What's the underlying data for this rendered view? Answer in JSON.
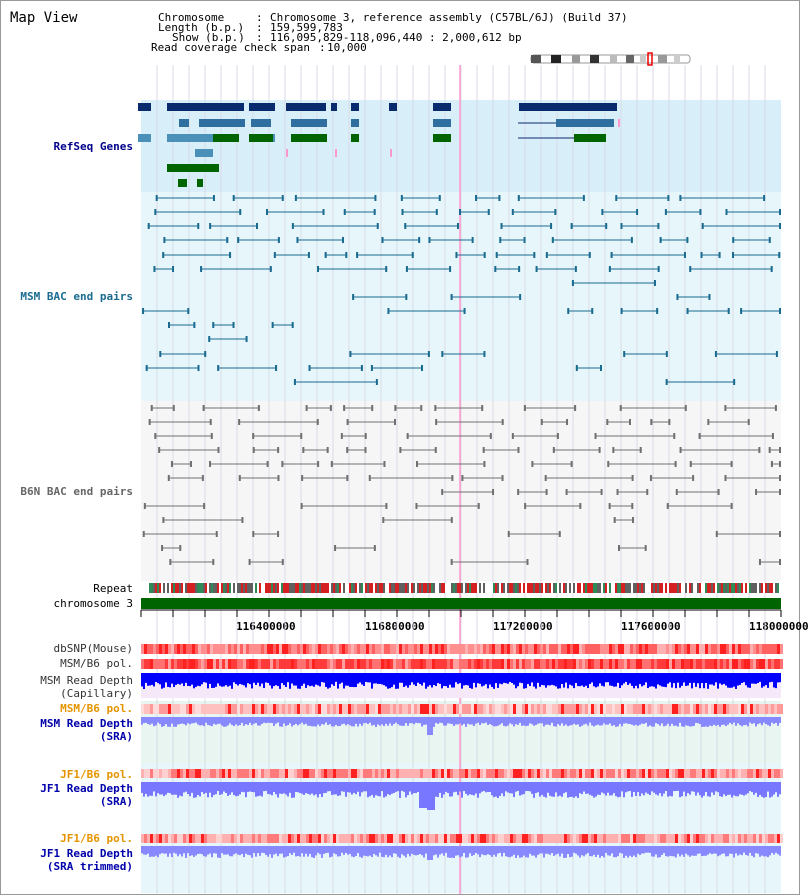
{
  "title": "Map View",
  "header": {
    "chromosome_label": "Chromosome",
    "chromosome_value": "Chromosome 3, reference assembly (C57BL/6J) (Build 37)",
    "length_label": "Length (b.p.)",
    "length_value": "159,599,783",
    "show_label": "Show (b.p.)",
    "show_value": "116,095,829-118,096,440 : 2,000,612 bp",
    "coverage_label": "Read coverage check span",
    "coverage_value": "10,000"
  },
  "tracks": {
    "refseq": {
      "label": "RefSeq Genes",
      "color": "#00008b"
    },
    "msm_bac": {
      "label": "MSM BAC end pairs",
      "color": "#1a6b8f"
    },
    "b6n_bac": {
      "label": "B6N BAC end pairs",
      "color": "#666666"
    },
    "repeat": {
      "label": "Repeat"
    },
    "chromosome": {
      "label": "chromosome 3",
      "color": "#006400"
    },
    "dbsnp": {
      "label": "dbSNP(Mouse)"
    },
    "msm_b6_pol": {
      "label": "MSM/B6 pol."
    },
    "msm_read_depth_cap": {
      "label": "MSM Read Depth\n(Capillary)"
    },
    "msm_b6_pol2": {
      "label": "MSM/B6 pol.",
      "color": "#e59400"
    },
    "msm_read_depth_sra": {
      "label": "MSM Read Depth\n(SRA)",
      "color": "#0000aa"
    },
    "jf1_b6_pol": {
      "label": "JF1/B6 pol.",
      "color": "#e59400"
    },
    "jf1_read_depth_sra": {
      "label": "JF1 Read Depth\n(SRA)",
      "color": "#0000aa"
    },
    "jf1_b6_pol2": {
      "label": "JF1/B6 pol.",
      "color": "#e59400"
    },
    "jf1_read_depth_trim": {
      "label": "JF1 Read Depth\n(SRA trimmed)",
      "color": "#0000aa"
    }
  },
  "axis": {
    "ticks": [
      "116400000",
      "116800000",
      "117200000",
      "117600000",
      "118000000"
    ]
  },
  "colors": {
    "refseq_band": "#d8eef8",
    "msm_band": "#e6f6fb",
    "b6n_band": "#f6f6f6",
    "depth_band": "#e8f5f0",
    "grid": "#d9d9e6",
    "selection": "#ff99cc"
  }
}
